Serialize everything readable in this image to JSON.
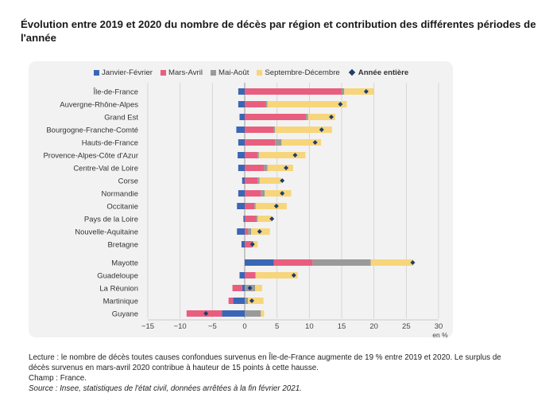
{
  "title": "Évolution entre 2019 et 2020 du nombre de décès par région et contribution des différentes périodes de l'année",
  "colors": {
    "janvier_fevrier": "#3a66b5",
    "mars_avril": "#e85e7f",
    "mai_aout": "#9a9a9a",
    "septembre_decembre": "#f7d57a",
    "annee_entiere": "#1f3d6b"
  },
  "chart_data": {
    "type": "bar",
    "orientation": "horizontal",
    "stacked": true,
    "categories": [
      "Île-de-France",
      "Auvergne-Rhône-Alpes",
      "Grand Est",
      "Bourgogne-Franche-Comté",
      "Hauts-de-France",
      "Provence-Alpes-Côte d'Azur",
      "Centre-Val de Loire",
      "Corse",
      "Normandie",
      "Occitanie",
      "Pays de la Loire",
      "Nouvelle-Aquitaine",
      "Bretagne",
      "Mayotte",
      "Guadeloupe",
      "La Réunion",
      "Martinique",
      "Guyane"
    ],
    "series": [
      {
        "name": "Janvier-Février",
        "values": [
          -1,
          -1,
          -0.8,
          -1.3,
          -1,
          -1.1,
          -1,
          -0.4,
          -1,
          -1.2,
          -0.2,
          -1.2,
          -0.5,
          4.5,
          -0.8,
          -0.4,
          -1.8,
          -3.5
        ]
      },
      {
        "name": "Mars-Avril",
        "values": [
          15,
          3.3,
          9.5,
          4.5,
          4.7,
          2,
          3,
          2,
          2.5,
          1.5,
          1.8,
          0.5,
          1.2,
          6,
          1.6,
          -1.5,
          -0.7,
          -5.5
        ]
      },
      {
        "name": "Mai-Août",
        "values": [
          0.4,
          0.2,
          0.3,
          0.2,
          1,
          0.2,
          0.5,
          0.3,
          0.6,
          0.2,
          0.2,
          0.5,
          0.1,
          9,
          0.1,
          1.6,
          0.5,
          2.5
        ]
      },
      {
        "name": "Septembre-Décembre",
        "values": [
          4.6,
          12.3,
          4.2,
          8.8,
          6.1,
          7.2,
          4,
          3.3,
          4.1,
          4.8,
          2.1,
          2.9,
          0.7,
          6.6,
          6.5,
          1.1,
          2.4,
          0.5
        ]
      }
    ],
    "total": {
      "name": "Année entière",
      "values": [
        18.8,
        14.8,
        13.4,
        11.9,
        10.9,
        7.8,
        6.4,
        5.8,
        5.8,
        4.9,
        4.2,
        2.3,
        1.2,
        26,
        7.6,
        0.8,
        1.1,
        -6
      ]
    },
    "xlim": [
      -15,
      30
    ],
    "xticks": [
      -15,
      -10,
      -5,
      0,
      5,
      10,
      15,
      20,
      25,
      30
    ],
    "xtick_labels": [
      "−15",
      "−10",
      "−5",
      "0",
      "5",
      "10",
      "15",
      "20",
      "25",
      "30"
    ],
    "xlabel": "en %",
    "legend_position": "top",
    "grid": true
  },
  "notes": {
    "lecture": "Lecture : le nombre de décès toutes causes confondues survenus en Île-de-France augmente de 19 % entre 2019 et 2020. Le surplus de décès survenus en mars-avril 2020 contribue à hauteur de 15 points à cette hausse.",
    "champ": "Champ : France.",
    "source": "Source : Insee, statistiques de l'état civil, données arrêtées à la fin février 2021."
  }
}
